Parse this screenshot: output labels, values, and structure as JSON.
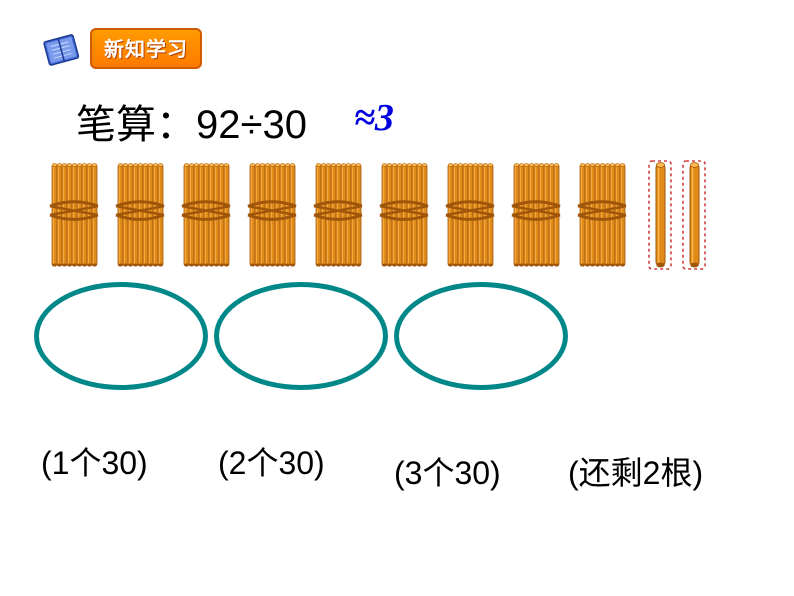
{
  "header": {
    "banner_text": "新知学习",
    "banner_bg_start": "#ff9b00",
    "banner_bg_end": "#ff7a00",
    "banner_border": "#d05a00",
    "banner_text_color": "#ffffff"
  },
  "equation": {
    "prefix": "笔算：",
    "expression": "92÷30",
    "approx_symbol": "≈3",
    "approx_color": "#0000e0"
  },
  "sticks": {
    "bundle_count": 9,
    "single_count": 2,
    "bundle_color": "#e08a1a",
    "bundle_dark": "#a0560a",
    "bundle_highlight": "#ffb84d",
    "single_outline": "#d04040",
    "outline_dash": "3,3"
  },
  "ovals": {
    "count": 3,
    "border_color": "#008888",
    "border_width": 5
  },
  "labels": {
    "l1": "(1个30)",
    "l2": "(2个30)",
    "l3": "(3个30)",
    "l4": "(还剩2根)",
    "font_size": 32,
    "color": "#000000"
  },
  "icons": {
    "book": "book-icon"
  }
}
